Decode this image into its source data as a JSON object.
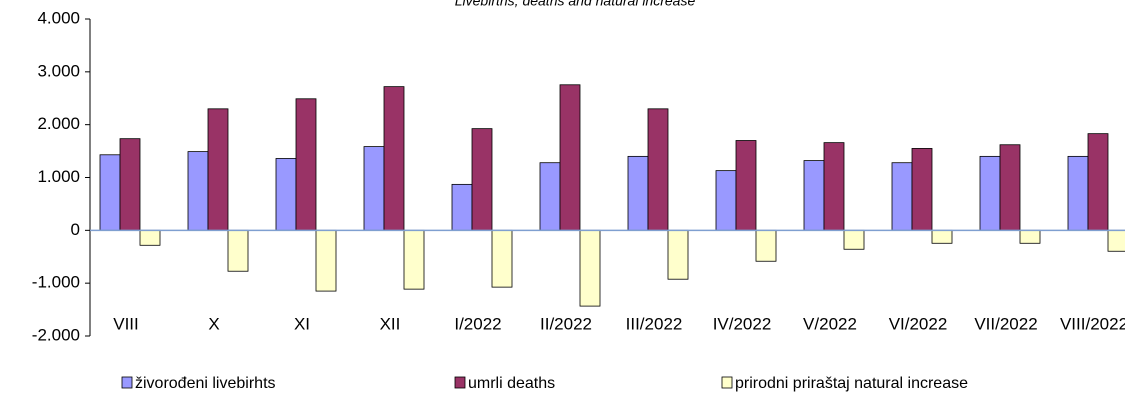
{
  "chart_data": {
    "type": "bar",
    "title": "Livebirths, deaths and natural increase",
    "categories": [
      "VIII",
      "X",
      "XI",
      "XII",
      "I/2022",
      "II/2022",
      "III/2022",
      "IV/2022",
      "V/2022",
      "VI/2022",
      "VII/2022",
      "VIII/2022"
    ],
    "series": [
      {
        "name": "živorođeni livebirhts",
        "color": "#9999ff",
        "values": [
          1430,
          1490,
          1360,
          1585,
          870,
          1280,
          1400,
          1130,
          1320,
          1280,
          1400,
          1400
        ]
      },
      {
        "name": "umrli deaths",
        "color": "#993366",
        "values": [
          1735,
          2300,
          2490,
          2720,
          1925,
          2755,
          2300,
          1700,
          1660,
          1550,
          1620,
          1830
        ]
      },
      {
        "name": "prirodni priraštaj natural increase",
        "color": "#ffffcc",
        "values": [
          -283,
          -774,
          -1150,
          -1113,
          -1075,
          -1434,
          -925,
          -585,
          -358,
          -245,
          -245,
          -396
        ]
      }
    ],
    "ylim": [
      -2000,
      4000
    ],
    "yticks": [
      {
        "value": -2000,
        "label": "-2.000"
      },
      {
        "value": -1000,
        "label": "-1.000"
      },
      0,
      {
        "value": 1000,
        "label": "1.000"
      },
      {
        "value": 2000,
        "label": "2.000"
      },
      {
        "value": 3000,
        "label": "3.000"
      },
      {
        "value": 4000,
        "label": "4.000"
      }
    ]
  }
}
